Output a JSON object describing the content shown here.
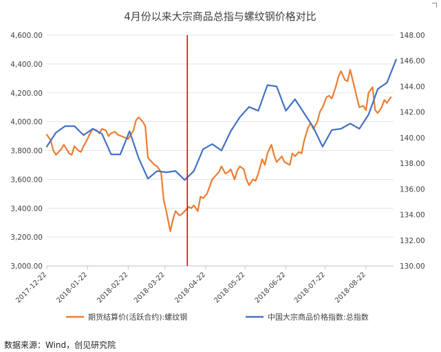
{
  "chart_data": {
    "type": "line",
    "title": "4月份以来大宗商品总指与螺纹钢价格对比",
    "x_ticks": [
      "2017-12-22",
      "2018-01-22",
      "2018-02-22",
      "2018-03-22",
      "2018-04-22",
      "2018-05-22",
      "2018-06-22",
      "2018-07-22",
      "2018-08-22"
    ],
    "y_left": {
      "min": 3000,
      "max": 4600,
      "ticks": [
        "3,000.00",
        "3,200.00",
        "3,400.00",
        "3,600.00",
        "3,800.00",
        "4,000.00",
        "4,200.00",
        "4,400.00",
        "4,600.00"
      ]
    },
    "y_right": {
      "min": 130,
      "max": 148,
      "ticks": [
        "130.00",
        "132.00",
        "134.00",
        "136.00",
        "138.00",
        "140.00",
        "142.00",
        "144.00",
        "146.00",
        "148.00"
      ]
    },
    "vertical_marker": {
      "x": "2018-04-08",
      "color": "#e00000"
    },
    "legend_position": "bottom",
    "series": [
      {
        "name": "期货结算价(活跃合约):螺纹钢",
        "axis": "left",
        "color": "#ed7d31",
        "points": [
          [
            "2017-12-22",
            3910
          ],
          [
            "2017-12-25",
            3870
          ],
          [
            "2017-12-27",
            3800
          ],
          [
            "2017-12-29",
            3770
          ],
          [
            "2018-01-02",
            3810
          ],
          [
            "2018-01-04",
            3840
          ],
          [
            "2018-01-08",
            3780
          ],
          [
            "2018-01-10",
            3770
          ],
          [
            "2018-01-12",
            3830
          ],
          [
            "2018-01-15",
            3800
          ],
          [
            "2018-01-17",
            3790
          ],
          [
            "2018-01-19",
            3830
          ],
          [
            "2018-01-22",
            3880
          ],
          [
            "2018-01-24",
            3920
          ],
          [
            "2018-01-26",
            3950
          ],
          [
            "2018-01-29",
            3940
          ],
          [
            "2018-01-31",
            3920
          ],
          [
            "2018-02-02",
            3950
          ],
          [
            "2018-02-05",
            3940
          ],
          [
            "2018-02-07",
            3900
          ],
          [
            "2018-02-09",
            3920
          ],
          [
            "2018-02-12",
            3930
          ],
          [
            "2018-02-14",
            3910
          ],
          [
            "2018-02-22",
            3880
          ],
          [
            "2018-02-26",
            3940
          ],
          [
            "2018-02-28",
            4010
          ],
          [
            "2018-03-02",
            4030
          ],
          [
            "2018-03-05",
            4000
          ],
          [
            "2018-03-07",
            3970
          ],
          [
            "2018-03-09",
            3750
          ],
          [
            "2018-03-12",
            3720
          ],
          [
            "2018-03-14",
            3700
          ],
          [
            "2018-03-16",
            3690
          ],
          [
            "2018-03-19",
            3650
          ],
          [
            "2018-03-21",
            3460
          ],
          [
            "2018-03-23",
            3380
          ],
          [
            "2018-03-26",
            3240
          ],
          [
            "2018-03-28",
            3320
          ],
          [
            "2018-03-30",
            3380
          ],
          [
            "2018-04-02",
            3350
          ],
          [
            "2018-04-04",
            3360
          ],
          [
            "2018-04-09",
            3410
          ],
          [
            "2018-04-11",
            3400
          ],
          [
            "2018-04-13",
            3420
          ],
          [
            "2018-04-16",
            3380
          ],
          [
            "2018-04-18",
            3480
          ],
          [
            "2018-04-20",
            3470
          ],
          [
            "2018-04-23",
            3500
          ],
          [
            "2018-04-25",
            3550
          ],
          [
            "2018-04-27",
            3600
          ],
          [
            "2018-05-02",
            3650
          ],
          [
            "2018-05-04",
            3690
          ],
          [
            "2018-05-07",
            3640
          ],
          [
            "2018-05-09",
            3650
          ],
          [
            "2018-05-11",
            3670
          ],
          [
            "2018-05-14",
            3600
          ],
          [
            "2018-05-16",
            3660
          ],
          [
            "2018-05-18",
            3690
          ],
          [
            "2018-05-21",
            3670
          ],
          [
            "2018-05-23",
            3600
          ],
          [
            "2018-05-25",
            3560
          ],
          [
            "2018-05-28",
            3600
          ],
          [
            "2018-05-30",
            3590
          ],
          [
            "2018-06-01",
            3640
          ],
          [
            "2018-06-04",
            3740
          ],
          [
            "2018-06-06",
            3700
          ],
          [
            "2018-06-08",
            3780
          ],
          [
            "2018-06-11",
            3840
          ],
          [
            "2018-06-13",
            3770
          ],
          [
            "2018-06-15",
            3720
          ],
          [
            "2018-06-19",
            3760
          ],
          [
            "2018-06-21",
            3720
          ],
          [
            "2018-06-25",
            3700
          ],
          [
            "2018-06-27",
            3780
          ],
          [
            "2018-06-29",
            3760
          ],
          [
            "2018-07-02",
            3790
          ],
          [
            "2018-07-04",
            3780
          ],
          [
            "2018-07-06",
            3870
          ],
          [
            "2018-07-09",
            3960
          ],
          [
            "2018-07-11",
            3990
          ],
          [
            "2018-07-13",
            3950
          ],
          [
            "2018-07-16",
            4000
          ],
          [
            "2018-07-18",
            4070
          ],
          [
            "2018-07-20",
            4100
          ],
          [
            "2018-07-23",
            4170
          ],
          [
            "2018-07-25",
            4180
          ],
          [
            "2018-07-27",
            4160
          ],
          [
            "2018-07-30",
            4240
          ],
          [
            "2018-08-01",
            4310
          ],
          [
            "2018-08-03",
            4350
          ],
          [
            "2018-08-06",
            4290
          ],
          [
            "2018-08-08",
            4280
          ],
          [
            "2018-08-10",
            4360
          ],
          [
            "2018-08-13",
            4250
          ],
          [
            "2018-08-15",
            4170
          ],
          [
            "2018-08-17",
            4100
          ],
          [
            "2018-08-20",
            4110
          ],
          [
            "2018-08-22",
            4080
          ],
          [
            "2018-08-24",
            4200
          ],
          [
            "2018-08-27",
            4240
          ],
          [
            "2018-08-29",
            4080
          ],
          [
            "2018-08-31",
            4060
          ],
          [
            "2018-09-03",
            4100
          ],
          [
            "2018-09-05",
            4150
          ],
          [
            "2018-09-07",
            4130
          ],
          [
            "2018-09-10",
            4170
          ]
        ]
      },
      {
        "name": "中国大宗商品价格指数:总指数",
        "axis": "right",
        "color": "#4472c4",
        "points": [
          [
            "2017-12-22",
            139.3
          ],
          [
            "2017-12-29",
            140.4
          ],
          [
            "2018-01-05",
            140.9
          ],
          [
            "2018-01-12",
            140.9
          ],
          [
            "2018-01-19",
            140.2
          ],
          [
            "2018-01-26",
            140.7
          ],
          [
            "2018-02-02",
            140.3
          ],
          [
            "2018-02-09",
            138.7
          ],
          [
            "2018-02-16",
            138.7
          ],
          [
            "2018-02-23",
            140.5
          ],
          [
            "2018-03-02",
            138.4
          ],
          [
            "2018-03-09",
            136.8
          ],
          [
            "2018-03-16",
            137.4
          ],
          [
            "2018-03-23",
            137.3
          ],
          [
            "2018-03-30",
            137.4
          ],
          [
            "2018-04-06",
            136.7
          ],
          [
            "2018-04-13",
            137.4
          ],
          [
            "2018-04-20",
            139.1
          ],
          [
            "2018-04-27",
            139.5
          ],
          [
            "2018-05-04",
            139.0
          ],
          [
            "2018-05-11",
            140.5
          ],
          [
            "2018-05-18",
            141.6
          ],
          [
            "2018-05-25",
            142.4
          ],
          [
            "2018-06-01",
            142.1
          ],
          [
            "2018-06-08",
            144.1
          ],
          [
            "2018-06-15",
            144.0
          ],
          [
            "2018-06-22",
            142.1
          ],
          [
            "2018-06-29",
            143.0
          ],
          [
            "2018-07-06",
            141.9
          ],
          [
            "2018-07-13",
            140.8
          ],
          [
            "2018-07-20",
            139.3
          ],
          [
            "2018-07-27",
            140.6
          ],
          [
            "2018-08-03",
            140.7
          ],
          [
            "2018-08-10",
            141.1
          ],
          [
            "2018-08-17",
            140.7
          ],
          [
            "2018-08-24",
            141.8
          ],
          [
            "2018-08-31",
            143.8
          ],
          [
            "2018-09-07",
            144.3
          ],
          [
            "2018-09-14",
            146.1
          ]
        ]
      }
    ]
  },
  "source_text": "数据来源：Wind，创见研究院"
}
